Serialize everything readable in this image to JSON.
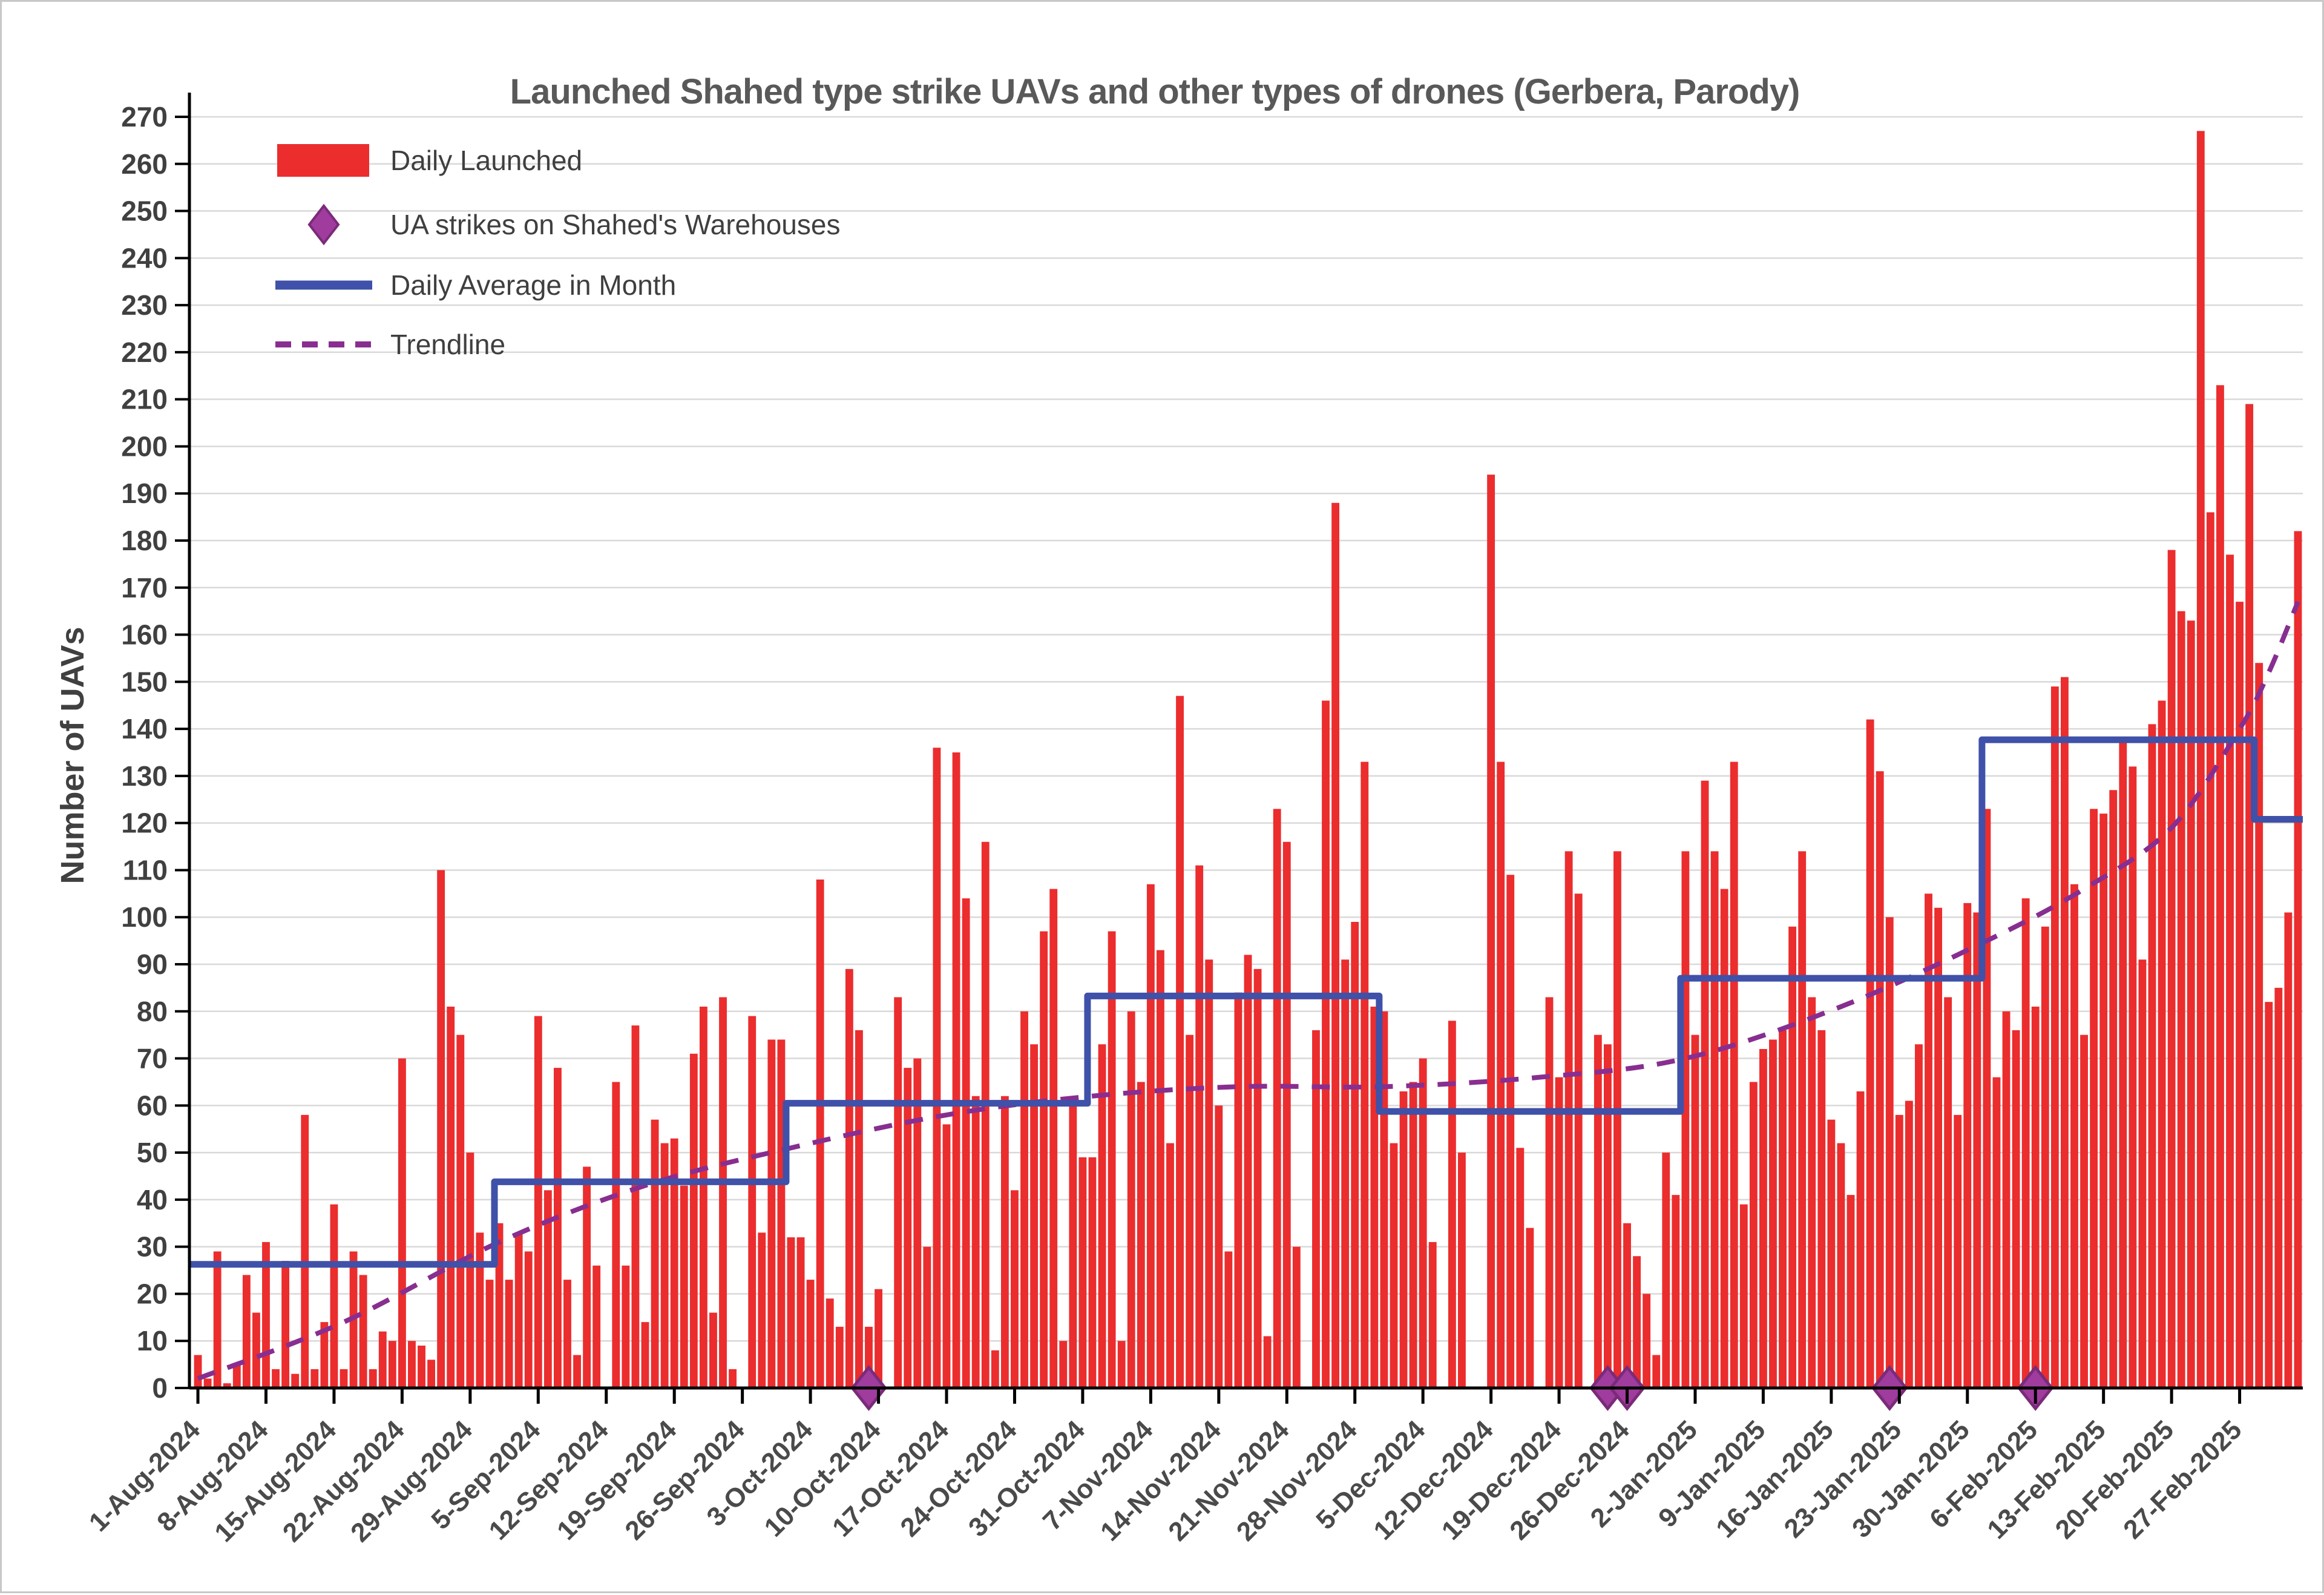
{
  "title": "Launched Shahed type strike UAVs and other types of drones (Gerbera, Parody)",
  "colors": {
    "bar_red": "#EB2D2E",
    "avg_blue": "#3F51A8",
    "strike_purple": "#A03C9E",
    "strike_purple_dark": "#7A2B78",
    "trend_purple": "#882E90",
    "grid": "#D9D9D9",
    "axis": "#000000",
    "title_text": "#595959",
    "tick_text": "#404040"
  },
  "legend": [
    {
      "label": "Daily Launched",
      "type": "bar-swatch"
    },
    {
      "label": "UA strikes on Shahed's Warehouses",
      "type": "diamond"
    },
    {
      "label": "Daily Average in Month",
      "type": "line"
    },
    {
      "label": "Trendline",
      "type": "dashed-line"
    }
  ],
  "chart_data": {
    "type": "bar",
    "title": "Launched Shahed type strike UAVs and other types of drones (Gerbera, Parody)",
    "xlabel": "",
    "ylabel": "Number of UAVs",
    "ylim": [
      0,
      270
    ],
    "ytick_step": 10,
    "grid": true,
    "legend_position": "top-left",
    "start_date": "1-Aug-2024",
    "end_date": "5-Mar-2025",
    "x_tick_labels": [
      "1-Aug-2024",
      "8-Aug-2024",
      "15-Aug-2024",
      "22-Aug-2024",
      "29-Aug-2024",
      "5-Sep-2024",
      "12-Sep-2024",
      "19-Sep-2024",
      "26-Sep-2024",
      "3-Oct-2024",
      "10-Oct-2024",
      "17-Oct-2024",
      "24-Oct-2024",
      "31-Oct-2024",
      "7-Nov-2024",
      "14-Nov-2024",
      "21-Nov-2024",
      "28-Nov-2024",
      "5-Dec-2024",
      "12-Dec-2024",
      "19-Dec-2024",
      "26-Dec-2024",
      "2-Jan-2025",
      "9-Jan-2025",
      "16-Jan-2025",
      "23-Jan-2025",
      "30-Jan-2025",
      "6-Feb-2025",
      "13-Feb-2025",
      "20-Feb-2025",
      "27-Feb-2025"
    ],
    "x_tick_interval_days": 7,
    "months": [
      {
        "label": "Aug-2024",
        "values": [
          7,
          2,
          29,
          1,
          5,
          24,
          16,
          31,
          4,
          27,
          3,
          58,
          4,
          14,
          39,
          4,
          29,
          24,
          4,
          12,
          10,
          70,
          10,
          9,
          6,
          110,
          81,
          75,
          50,
          33,
          23
        ]
      },
      {
        "label": "Sep-2024",
        "values": [
          35,
          23,
          33,
          29,
          79,
          42,
          68,
          23,
          7,
          47,
          26,
          0,
          65,
          26,
          77,
          14,
          57,
          52,
          53,
          43,
          71,
          81,
          16,
          83,
          4,
          0,
          79,
          33,
          74,
          74
        ]
      },
      {
        "label": "Oct-2024",
        "values": [
          32,
          32,
          23,
          108,
          19,
          13,
          89,
          76,
          13,
          21,
          0,
          83,
          68,
          70,
          30,
          136,
          56,
          135,
          104,
          62,
          116,
          8,
          62,
          42,
          80,
          73,
          97,
          106,
          10,
          62,
          49
        ]
      },
      {
        "label": "Nov-2024",
        "values": [
          49,
          73,
          97,
          10,
          80,
          65,
          107,
          93,
          52,
          147,
          75,
          111,
          91,
          60,
          29,
          84,
          92,
          89,
          11,
          123,
          116,
          30,
          0,
          76,
          146,
          188,
          91,
          99,
          133,
          81
        ]
      },
      {
        "label": "Dec-2024",
        "values": [
          80,
          52,
          63,
          65,
          70,
          31,
          0,
          78,
          50,
          0,
          0,
          194,
          133,
          109,
          51,
          34,
          0,
          83,
          66,
          114,
          105,
          0,
          75,
          73,
          114,
          35,
          28,
          20,
          7,
          50,
          41
        ]
      },
      {
        "label": "Jan-2025",
        "values": [
          114,
          75,
          129,
          114,
          106,
          133,
          39,
          65,
          72,
          74,
          76,
          98,
          114,
          83,
          76,
          57,
          52,
          41,
          63,
          142,
          131,
          100,
          58,
          61,
          73,
          105,
          102,
          83,
          58,
          103,
          101
        ]
      },
      {
        "label": "Feb-2025",
        "values": [
          123,
          66,
          80,
          76,
          104,
          81,
          98,
          149,
          151,
          107,
          75,
          123,
          122,
          127,
          138,
          132,
          91,
          141,
          146,
          178,
          165,
          163,
          267,
          186,
          213,
          177,
          167,
          209
        ]
      },
      {
        "label": "Mar-2025",
        "values": [
          154,
          82,
          85,
          101,
          182
        ]
      }
    ],
    "monthly_average_series_name": "Daily Average in Month",
    "trendline_points": [
      [
        1,
        2
      ],
      [
        16,
        14
      ],
      [
        32,
        31
      ],
      [
        47,
        43
      ],
      [
        62,
        51
      ],
      [
        78,
        58
      ],
      [
        93,
        62
      ],
      [
        108,
        64
      ],
      [
        123,
        64
      ],
      [
        139,
        66
      ],
      [
        154,
        70
      ],
      [
        170,
        81
      ],
      [
        185,
        95
      ],
      [
        195,
        106
      ],
      [
        204,
        119
      ],
      [
        211,
        140
      ],
      [
        214,
        152
      ],
      [
        217,
        167
      ]
    ],
    "strikes": [
      {
        "date": "9-Oct-2024",
        "day": 70
      },
      {
        "date": "24-Dec-2024",
        "day": 146
      },
      {
        "date": "26-Dec-2024",
        "day": 148
      },
      {
        "date": "22-Jan-2025",
        "day": 175
      },
      {
        "date": "6-Feb-2025",
        "day": 190
      }
    ]
  }
}
